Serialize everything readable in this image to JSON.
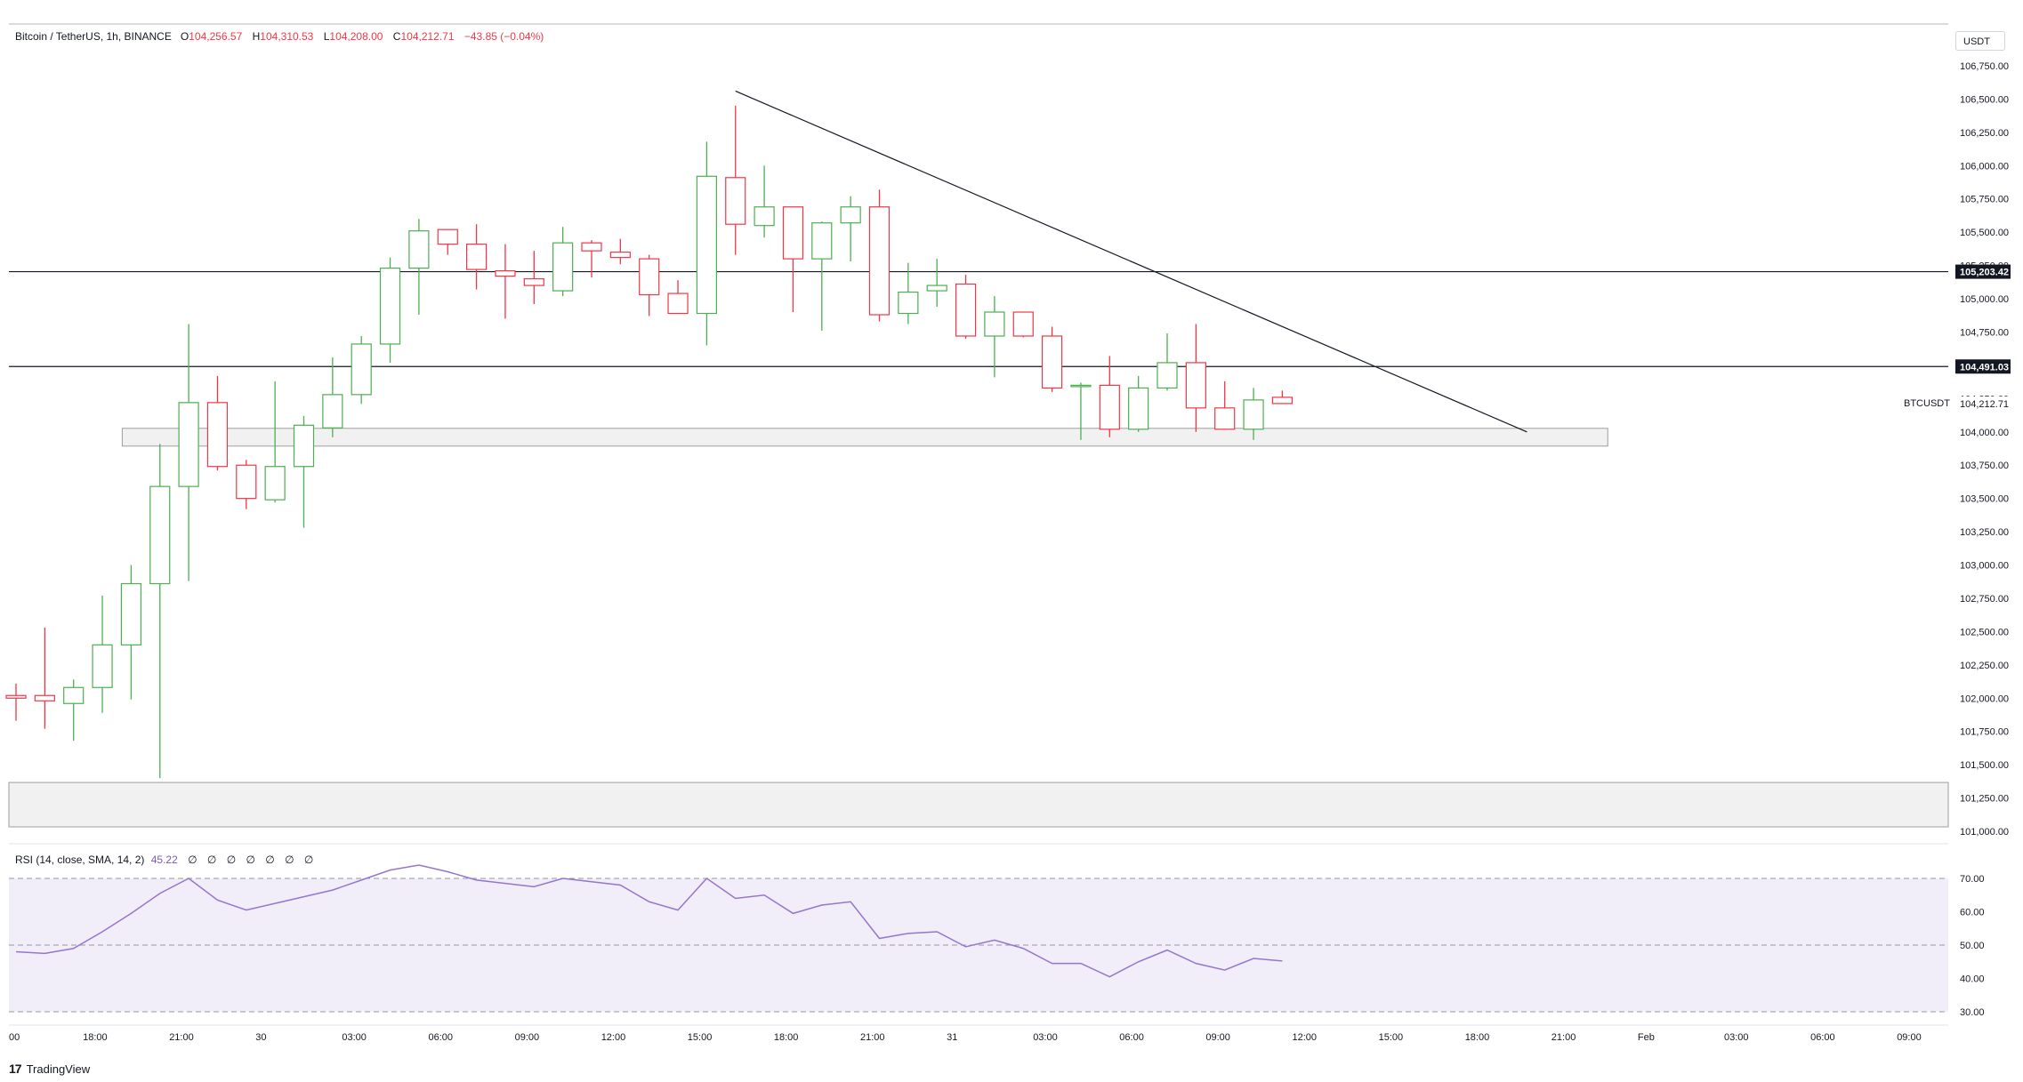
{
  "header": {
    "symbol": "Bitcoin / TetherUS, 1h, BINANCE",
    "open_label": "O",
    "open": "104,256.57",
    "high_label": "H",
    "high": "104,310.53",
    "low_label": "L",
    "low": "104,208.00",
    "close_label": "C",
    "close": "104,212.71",
    "change": "−43.85 (−0.04%)"
  },
  "currency": "USDT",
  "symbol_tag": "BTCUSDT",
  "rsi_header": {
    "label": "RSI (14, close, SMA, 14, 2)",
    "value": "45.22",
    "nulls": [
      "∅",
      "∅",
      "∅",
      "∅",
      "∅",
      "∅",
      "∅"
    ]
  },
  "branding": {
    "name": "TradingView"
  },
  "colors": {
    "up": "#4caf50",
    "down": "#f23645",
    "rsi": "#9575cd",
    "rsi_band": "#ede7f6",
    "line": "#131722"
  },
  "chart_data": [
    {
      "type": "candlestick",
      "ylim": [
        101000,
        106750
      ],
      "y_ticks": [
        101000,
        101250,
        101500,
        101750,
        102000,
        102250,
        102500,
        102750,
        103000,
        103250,
        103500,
        103750,
        104000,
        104250,
        104500,
        104750,
        105000,
        105250,
        105500,
        105750,
        106000,
        106250,
        106500,
        106750
      ],
      "y_tick_labels": [
        "101,000.00",
        "101,250.00",
        "101,500.00",
        "101,750.00",
        "102,000.00",
        "102,250.00",
        "102,500.00",
        "102,750.00",
        "103,000.00",
        "103,250.00",
        "103,500.00",
        "103,750.00",
        "104,000.00",
        "104,250.00",
        "104,500.00",
        "104,750.00",
        "105,000.00",
        "105,250.00",
        "105,500.00",
        "105,750.00",
        "106,000.00",
        "106,250.00",
        "106,500.00",
        "106,750.00"
      ],
      "x_labels": [
        "00",
        "18:00",
        "21:00",
        "30",
        "03:00",
        "06:00",
        "09:00",
        "12:00",
        "15:00",
        "18:00",
        "21:00",
        "31",
        "03:00",
        "06:00",
        "09:00",
        "12:00",
        "15:00",
        "18:00",
        "21:00",
        "Feb",
        "03:00",
        "06:00",
        "09:00"
      ],
      "candles": [
        {
          "o": 102020,
          "h": 102110,
          "l": 101830,
          "c": 102000
        },
        {
          "o": 102020,
          "h": 102530,
          "l": 101770,
          "c": 101980
        },
        {
          "o": 101960,
          "h": 102140,
          "l": 101680,
          "c": 102080
        },
        {
          "o": 102080,
          "h": 102770,
          "l": 101890,
          "c": 102400
        },
        {
          "o": 102400,
          "h": 103000,
          "l": 101990,
          "c": 102860
        },
        {
          "o": 102860,
          "h": 103910,
          "l": 101400,
          "c": 103590
        },
        {
          "o": 103590,
          "h": 104810,
          "l": 102880,
          "c": 104220
        },
        {
          "o": 104220,
          "h": 104420,
          "l": 103710,
          "c": 103740
        },
        {
          "o": 103750,
          "h": 103790,
          "l": 103420,
          "c": 103500
        },
        {
          "o": 103490,
          "h": 104380,
          "l": 103470,
          "c": 103740
        },
        {
          "o": 103740,
          "h": 104120,
          "l": 103280,
          "c": 104050
        },
        {
          "o": 104030,
          "h": 104560,
          "l": 103960,
          "c": 104280
        },
        {
          "o": 104280,
          "h": 104720,
          "l": 104210,
          "c": 104660
        },
        {
          "o": 104660,
          "h": 105310,
          "l": 104520,
          "c": 105230
        },
        {
          "o": 105230,
          "h": 105600,
          "l": 104880,
          "c": 105510
        },
        {
          "o": 105520,
          "h": 105520,
          "l": 105330,
          "c": 105410
        },
        {
          "o": 105410,
          "h": 105560,
          "l": 105070,
          "c": 105220
        },
        {
          "o": 105210,
          "h": 105410,
          "l": 104850,
          "c": 105170
        },
        {
          "o": 105150,
          "h": 105360,
          "l": 104960,
          "c": 105100
        },
        {
          "o": 105060,
          "h": 105540,
          "l": 105020,
          "c": 105420
        },
        {
          "o": 105420,
          "h": 105440,
          "l": 105160,
          "c": 105360
        },
        {
          "o": 105350,
          "h": 105450,
          "l": 105260,
          "c": 105310
        },
        {
          "o": 105300,
          "h": 105330,
          "l": 104870,
          "c": 105030
        },
        {
          "o": 105040,
          "h": 105140,
          "l": 104910,
          "c": 104890
        },
        {
          "o": 104890,
          "h": 106180,
          "l": 104650,
          "c": 105920
        },
        {
          "o": 105910,
          "h": 106450,
          "l": 105330,
          "c": 105560
        },
        {
          "o": 105550,
          "h": 106000,
          "l": 105460,
          "c": 105690
        },
        {
          "o": 105690,
          "h": 105690,
          "l": 104900,
          "c": 105300
        },
        {
          "o": 105300,
          "h": 105580,
          "l": 104760,
          "c": 105570
        },
        {
          "o": 105570,
          "h": 105770,
          "l": 105280,
          "c": 105690
        },
        {
          "o": 105690,
          "h": 105820,
          "l": 104830,
          "c": 104880
        },
        {
          "o": 104890,
          "h": 105270,
          "l": 104810,
          "c": 105050
        },
        {
          "o": 105060,
          "h": 105300,
          "l": 104940,
          "c": 105100
        },
        {
          "o": 105110,
          "h": 105180,
          "l": 104700,
          "c": 104720
        },
        {
          "o": 104720,
          "h": 105020,
          "l": 104410,
          "c": 104900
        },
        {
          "o": 104900,
          "h": 104900,
          "l": 104710,
          "c": 104720
        },
        {
          "o": 104720,
          "h": 104790,
          "l": 104300,
          "c": 104330
        },
        {
          "o": 104340,
          "h": 104370,
          "l": 103940,
          "c": 104350
        },
        {
          "o": 104350,
          "h": 104570,
          "l": 103960,
          "c": 104020
        },
        {
          "o": 104020,
          "h": 104420,
          "l": 104000,
          "c": 104330
        },
        {
          "o": 104330,
          "h": 104740,
          "l": 104310,
          "c": 104520
        },
        {
          "o": 104520,
          "h": 104810,
          "l": 104000,
          "c": 104180
        },
        {
          "o": 104180,
          "h": 104380,
          "l": 104040,
          "c": 104020
        },
        {
          "o": 104020,
          "h": 104330,
          "l": 103940,
          "c": 104240
        },
        {
          "o": 104260,
          "h": 104310,
          "l": 104208,
          "c": 104213
        }
      ],
      "trendline": {
        "from": {
          "candle": 25,
          "price": 106560
        },
        "to": {
          "candle": 52.5,
          "price": 104000
        }
      },
      "horizontal_lines": [
        {
          "price": 105203.42,
          "label": "105,203.42"
        },
        {
          "price": 104491.03,
          "label": "104,491.03"
        }
      ],
      "last_price": {
        "price": 104212.71,
        "label": "104,212.71"
      },
      "zones": [
        {
          "from_candle": 4,
          "to_candle": 55,
          "price_low": 103920,
          "price_high": 104000
        },
        {
          "from_candle": -1,
          "to_candle": 75,
          "price_low": 101060,
          "price_high": 101340
        }
      ]
    },
    {
      "type": "line",
      "name": "RSI",
      "ylim": [
        30,
        70
      ],
      "y_ticks": [
        30,
        40,
        50,
        60,
        70
      ],
      "y_tick_labels": [
        "30.00",
        "40.00",
        "50.00",
        "60.00",
        "70.00"
      ],
      "band": [
        30,
        70
      ],
      "midline": 50,
      "values": [
        48,
        47.5,
        49,
        54,
        59.5,
        65.5,
        70,
        63.5,
        60.5,
        62.5,
        64.5,
        66.5,
        69.5,
        72.5,
        74,
        72,
        69.5,
        68.5,
        67.5,
        70,
        69,
        68,
        63,
        60.5,
        70,
        64,
        65,
        59.5,
        62,
        63,
        52,
        53.5,
        54,
        49.5,
        51.5,
        49,
        44.5,
        44.5,
        40.5,
        45,
        48.5,
        44.5,
        42.5,
        46,
        45.22
      ]
    }
  ]
}
